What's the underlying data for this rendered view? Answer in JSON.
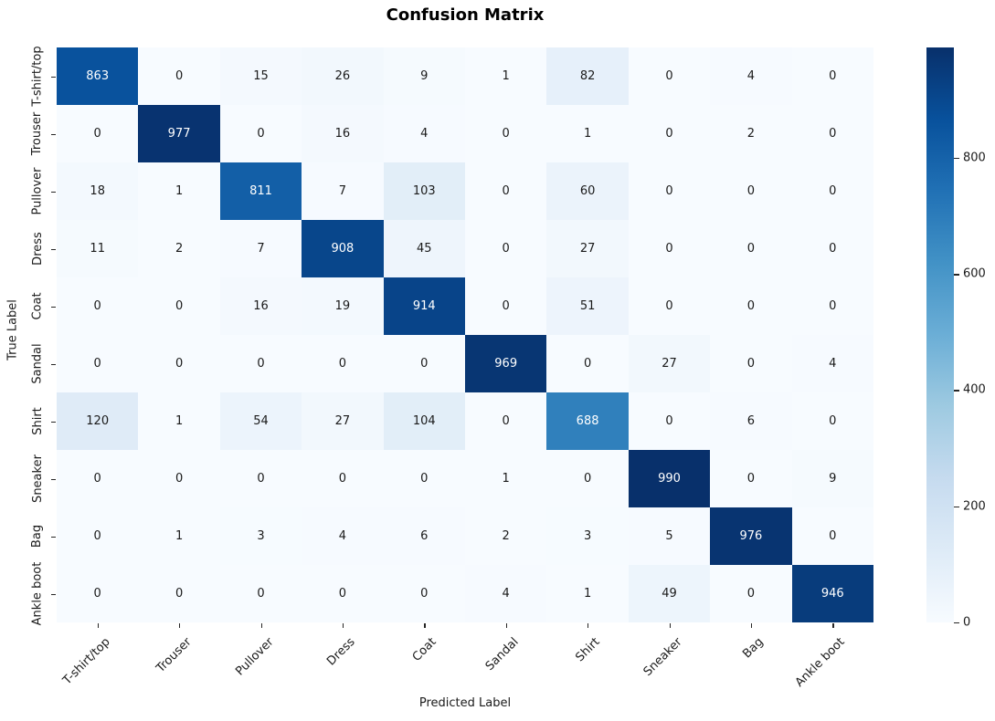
{
  "title": "Confusion Matrix",
  "xlabel": "Predicted Label",
  "ylabel": "True Label",
  "chart_data": {
    "type": "heatmap",
    "title": "Confusion Matrix",
    "xlabel": "Predicted Label",
    "ylabel": "True Label",
    "categories": [
      "T-shirt/top",
      "Trouser",
      "Pullover",
      "Dress",
      "Coat",
      "Sandal",
      "Shirt",
      "Sneaker",
      "Bag",
      "Ankle boot"
    ],
    "matrix": [
      [
        863,
        0,
        15,
        26,
        9,
        1,
        82,
        0,
        4,
        0
      ],
      [
        0,
        977,
        0,
        16,
        4,
        0,
        1,
        0,
        2,
        0
      ],
      [
        18,
        1,
        811,
        7,
        103,
        0,
        60,
        0,
        0,
        0
      ],
      [
        11,
        2,
        7,
        908,
        45,
        0,
        27,
        0,
        0,
        0
      ],
      [
        0,
        0,
        16,
        19,
        914,
        0,
        51,
        0,
        0,
        0
      ],
      [
        0,
        0,
        0,
        0,
        0,
        969,
        0,
        27,
        0,
        4
      ],
      [
        120,
        1,
        54,
        27,
        104,
        0,
        688,
        0,
        6,
        0
      ],
      [
        0,
        0,
        0,
        0,
        0,
        1,
        0,
        990,
        0,
        9
      ],
      [
        0,
        1,
        3,
        4,
        6,
        2,
        3,
        5,
        976,
        0
      ],
      [
        0,
        0,
        0,
        0,
        0,
        4,
        1,
        49,
        0,
        946
      ]
    ],
    "vmin": 0,
    "vmax": 990,
    "colormap": "Blues",
    "colormap_stops": [
      "#f7fbff",
      "#deebf7",
      "#c6dbef",
      "#9ecae1",
      "#6baed6",
      "#4292c6",
      "#2171b5",
      "#08519c",
      "#08306b"
    ],
    "colorbar_ticks": [
      0,
      200,
      400,
      600,
      800
    ],
    "legend_position": "right-colorbar",
    "grid": false,
    "annot_text_dark": "#1a1a1a",
    "annot_text_light": "#ffffff"
  }
}
